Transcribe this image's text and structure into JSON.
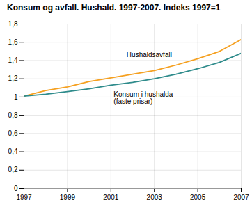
{
  "chart_data": {
    "type": "line",
    "title": "Konsum og avfall. Hushald. 1997-2007. Indeks 1997=1",
    "x": [
      1997,
      1998,
      1999,
      2000,
      2001,
      2002,
      2003,
      2004,
      2005,
      2006,
      2007
    ],
    "series": [
      {
        "name": "Hushaldsavfall",
        "color": "#F5A020",
        "values": [
          1.01,
          1.07,
          1.11,
          1.17,
          1.21,
          1.25,
          1.29,
          1.35,
          1.42,
          1.5,
          1.63
        ]
      },
      {
        "name": "Konsum i hushalda\n(faste prisar)",
        "color": "#2E8B8B",
        "values": [
          1.01,
          1.03,
          1.06,
          1.09,
          1.13,
          1.16,
          1.2,
          1.25,
          1.31,
          1.38,
          1.48
        ]
      }
    ],
    "xlim": [
      1997,
      2007
    ],
    "xticks": [
      1997,
      1999,
      2001,
      2003,
      2005,
      2007
    ],
    "ylim": [
      0,
      1.8
    ],
    "yticks": [
      0,
      {
        "value": 0.2,
        "label": "0,2"
      },
      {
        "value": 0.4,
        "label": "0,4"
      },
      {
        "value": 0.6,
        "label": "0,6"
      },
      {
        "value": 0.8,
        "label": "0,8"
      },
      1,
      {
        "value": 1.2,
        "label": "1,2"
      },
      {
        "value": 1.4,
        "label": "1,4"
      },
      {
        "value": 1.6,
        "label": "1,6"
      },
      {
        "value": 1.8,
        "label": "1,8"
      }
    ],
    "grid": true
  }
}
